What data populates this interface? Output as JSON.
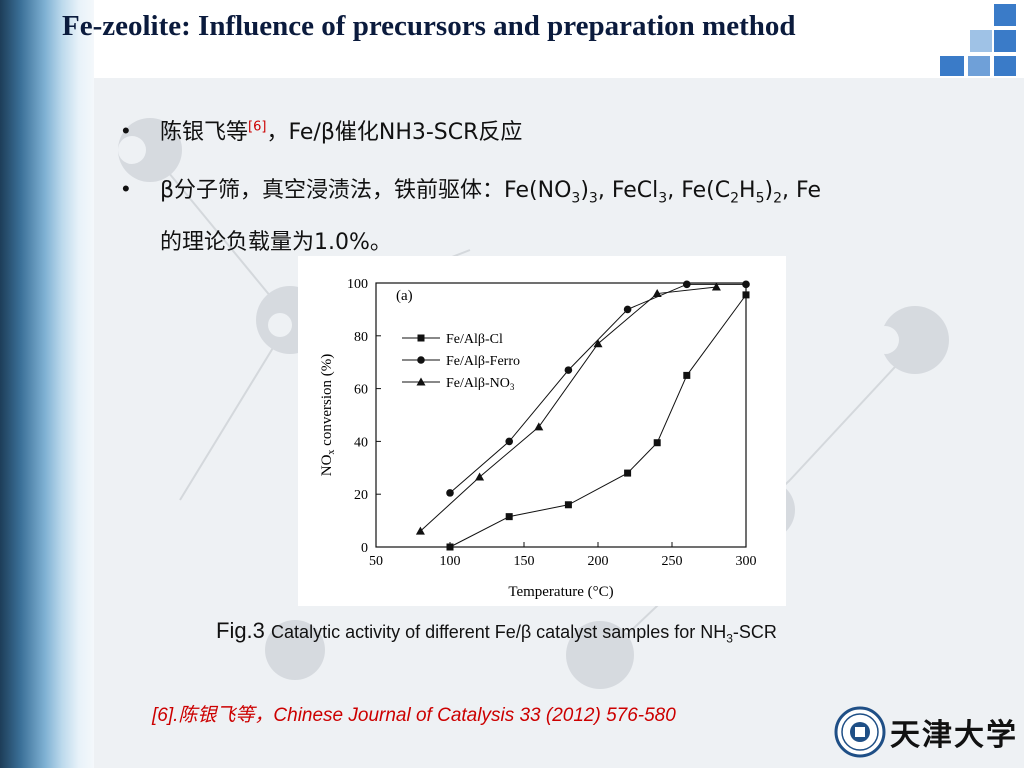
{
  "slide": {
    "title": "Fe-zeolite: Influence of precursors and preparation  method"
  },
  "bullets": [
    {
      "marker": "•",
      "author": "陈银飞等",
      "ref": "[6]",
      "text": "，Fe/β催化NH3-SCR反应"
    },
    {
      "marker": "•",
      "line1_a": "β分子筛，真空浸渍法，铁前驱体：Fe(NO",
      "line1_b": "3",
      "line1_c": ")",
      "line1_d": "3",
      "line1_e": ", FeCl",
      "line1_f": "3",
      "line1_g": ", Fe(C",
      "line1_h": "2",
      "line1_i": "H",
      "line1_j": "5",
      "line1_k": ")",
      "line1_l": "2",
      "line1_m": ", Fe",
      "line2": "的理论负载量为1.0%。"
    }
  ],
  "caption": {
    "prefix": "Fig.3",
    "text": "Catalytic activity of different Fe/β  catalyst samples for NH",
    "sub": "3",
    "suffix": "-SCR"
  },
  "reference": "[6].陈银飞等，Chinese Journal of Catalysis 33 (2012) 576-580",
  "logo": {
    "name": "天津大学"
  },
  "colors": {
    "title": "#0b1b3d",
    "reference": "#cc0000",
    "accent_blue": "#3a7bc8",
    "sidebar_dark": "#1d3d58"
  },
  "chart_data": {
    "type": "line",
    "panel_label": "(a)",
    "xlabel": "Temperature (°C)",
    "ylabel": "NO",
    "ylabel_sub": "x",
    "ylabel_rest": " conversion (%)",
    "xlim": [
      50,
      300
    ],
    "ylim": [
      0,
      100
    ],
    "xticks": [
      50,
      100,
      150,
      200,
      250,
      300
    ],
    "yticks": [
      0,
      20,
      40,
      60,
      80,
      100
    ],
    "legend_position": "upper-left",
    "series": [
      {
        "name": "Fe/Alβ-Cl",
        "marker": "square",
        "x": [
          100,
          140,
          180,
          220,
          240,
          260,
          300
        ],
        "y": [
          0,
          11.5,
          16,
          28,
          39.5,
          65,
          95.5
        ]
      },
      {
        "name": "Fe/Alβ-Ferro",
        "marker": "circle",
        "x": [
          100,
          140,
          180,
          220,
          260,
          300
        ],
        "y": [
          20.5,
          40,
          67,
          90,
          99.5,
          99.5
        ]
      },
      {
        "name": "Fe/Alβ-NO",
        "name_sub": "3",
        "marker": "triangle",
        "x": [
          80,
          120,
          160,
          200,
          240,
          280
        ],
        "y": [
          6,
          26.5,
          45.5,
          77,
          96,
          98.5
        ]
      }
    ]
  }
}
